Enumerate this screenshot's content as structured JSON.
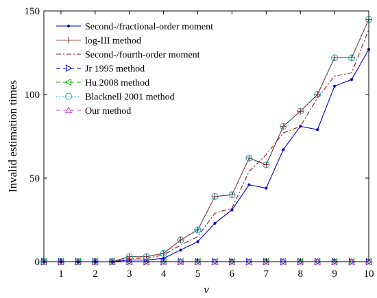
{
  "chart_data": {
    "type": "line",
    "xlabel": "v",
    "ylabel": "Invalid estimation times",
    "xlim": [
      0.5,
      10
    ],
    "ylim": [
      0,
      150
    ],
    "xticks": [
      1,
      2,
      3,
      4,
      5,
      6,
      7,
      8,
      9,
      10
    ],
    "yticks": [
      0,
      50,
      100,
      150
    ],
    "grid": false,
    "legend_position": "top-left",
    "x": [
      0.5,
      1,
      1.5,
      2,
      2.5,
      3,
      3.5,
      4,
      4.5,
      5,
      5.5,
      6,
      6.5,
      7,
      7.5,
      8,
      8.5,
      9,
      9.5,
      10
    ],
    "series": [
      {
        "name": "Second-/fractional-order moment",
        "color": "#0000cc",
        "line_style": "solid",
        "marker": "point",
        "values": [
          0,
          0,
          0,
          0,
          0,
          1,
          1,
          2,
          7,
          12,
          23,
          31,
          46,
          44,
          67,
          81,
          79,
          105,
          109,
          127
        ]
      },
      {
        "name": "log-III method",
        "color": "#8b1a1a",
        "line_style": "solid",
        "marker": "plus",
        "values": [
          0,
          0,
          0,
          0,
          0,
          3,
          3,
          5,
          13,
          19,
          39,
          40,
          62,
          58,
          81,
          90,
          100,
          122,
          122,
          145
        ]
      },
      {
        "name": "Second-/fourth-order moment",
        "color": "#8b1a1a",
        "line_style": "dashdot",
        "marker": "none",
        "values": [
          0,
          0,
          0,
          0,
          0,
          2,
          2,
          4,
          10,
          15,
          29,
          32,
          54,
          64,
          77,
          81,
          98,
          111,
          113,
          139
        ]
      },
      {
        "name": "Jr 1995 method",
        "color": "#0000cc",
        "line_style": "dashed",
        "marker": "triangle-right",
        "values": [
          0,
          0,
          0,
          0,
          0,
          0,
          0,
          0,
          0,
          0,
          0,
          0,
          0,
          0,
          0,
          0,
          0,
          0,
          0,
          0
        ]
      },
      {
        "name": "Hu 2008 method",
        "color": "#00aa00",
        "line_style": "dashed",
        "marker": "triangle-left",
        "values": [
          0,
          0,
          0,
          0,
          0,
          0,
          0,
          0,
          0,
          0,
          0,
          0,
          0,
          0,
          0,
          0,
          0,
          0,
          0,
          0
        ]
      },
      {
        "name": "Blacknell 2001 method",
        "color": "#22a6b3",
        "line_style": "dotted",
        "marker": "circle",
        "values": [
          0,
          0,
          0,
          0,
          0,
          3,
          3,
          5,
          13,
          19,
          39,
          40,
          62,
          58,
          81,
          90,
          100,
          122,
          122,
          145
        ]
      },
      {
        "name": "Our method",
        "color": "#cc44cc",
        "line_style": "dashed",
        "marker": "triangle-up",
        "values": [
          0,
          0,
          0,
          0,
          0,
          0,
          0,
          0,
          0,
          0,
          0,
          0,
          0,
          0,
          0,
          0,
          0,
          0,
          0,
          0
        ]
      }
    ]
  }
}
